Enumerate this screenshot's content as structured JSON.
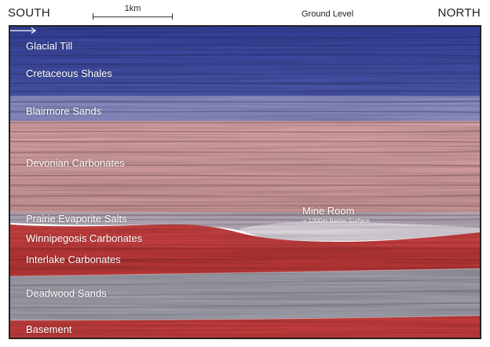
{
  "header": {
    "south": "SOUTH",
    "north": "NORTH",
    "ground_level": "Ground Level",
    "scale_label": "1km"
  },
  "layers": [
    {
      "label": "Glacial Till",
      "color": "#3d4a9e"
    },
    {
      "label": "Cretaceous Shales",
      "color": "#3f4ba0"
    },
    {
      "label": "Blairmore Sands",
      "color": "#8e8fc4"
    },
    {
      "label": "Devonian Carbonates",
      "color": "#d49a9c"
    },
    {
      "label": "Prairie Evaporite Salts",
      "color": "#a8a6b5"
    },
    {
      "label": "Winnipegosis Carbonates",
      "color": "#c0403f"
    },
    {
      "label": "Interlake Carbonates",
      "color": "#b93a3a"
    },
    {
      "label": "Deadwood Sands",
      "color": "#9c9ca8"
    },
    {
      "label": "Basement",
      "color": "#c03b3b"
    }
  ],
  "mine_room": {
    "label": "Mine Room",
    "depth_note": "≈ 1000m Below Surface"
  }
}
